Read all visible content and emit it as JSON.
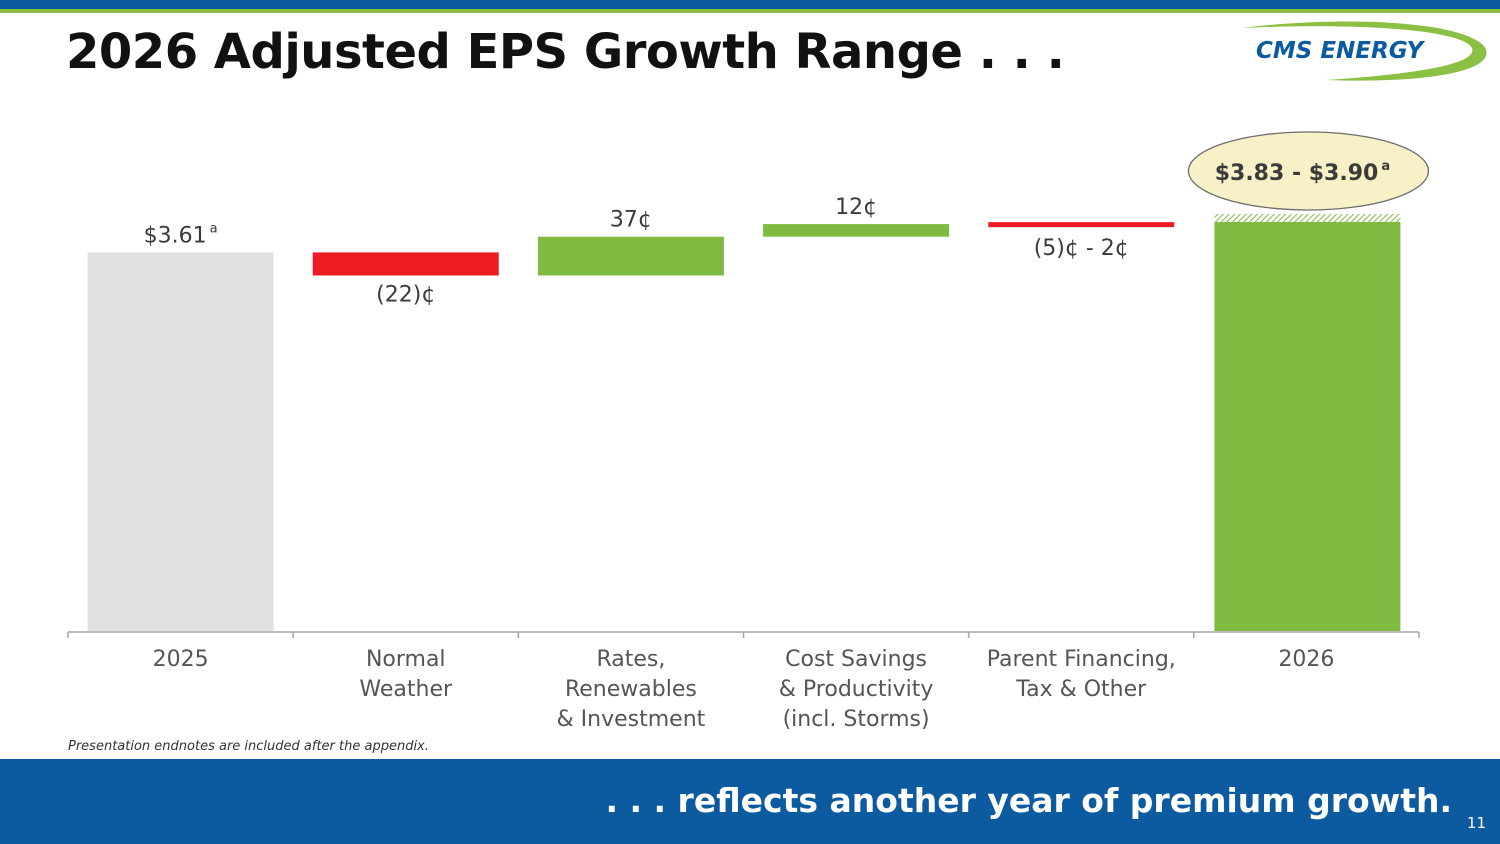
{
  "slide": {
    "title": "2026 Adjusted EPS Growth Range . . .",
    "logo_text": "CMS ENERGY",
    "endnote": "Presentation endnotes are included after the appendix.",
    "tagline": ". . . reflects another year of premium growth.",
    "page_number": "11"
  },
  "colors": {
    "brand_blue": "#0c5aa0",
    "brand_green": "#8ac043",
    "positive": "#80bb41",
    "negative": "#ee1b22",
    "baseline_bar": "#e1e1e1",
    "callout_fill": "#f8f0c6"
  },
  "chart_data": {
    "type": "waterfall",
    "units": "USD per share",
    "categories": [
      [
        "2025"
      ],
      [
        "Normal",
        "Weather"
      ],
      [
        "Rates,",
        "Renewables",
        "& Investment"
      ],
      [
        "Cost Savings",
        "& Productivity",
        "(incl. Storms)"
      ],
      [
        "Parent Financing,",
        "Tax & Other"
      ],
      [
        "2026"
      ]
    ],
    "steps": [
      {
        "kind": "total",
        "start": 0,
        "end": 3.61,
        "label": "$3.61",
        "footnote": "a",
        "label_pos": "above",
        "color": "baseline_bar"
      },
      {
        "kind": "delta",
        "start": 3.61,
        "end": 3.39,
        "label": "(22)¢",
        "label_pos": "below",
        "color": "negative"
      },
      {
        "kind": "delta",
        "start": 3.39,
        "end": 3.76,
        "label": "37¢",
        "label_pos": "above",
        "color": "positive"
      },
      {
        "kind": "delta",
        "start": 3.76,
        "end": 3.88,
        "label": "12¢",
        "label_pos": "above",
        "color": "positive"
      },
      {
        "kind": "range",
        "low": -0.05,
        "high": 0.02,
        "center": 3.87,
        "label": "(5)¢ - 2¢",
        "label_pos": "below",
        "color": "negative"
      },
      {
        "kind": "total_range",
        "start": 0,
        "low": 3.83,
        "high": 3.9,
        "label": "$3.83 - $3.90",
        "footnote": "a",
        "label_pos": "callout",
        "color": "positive"
      }
    ],
    "ylim": [
      0,
      3.9
    ]
  }
}
